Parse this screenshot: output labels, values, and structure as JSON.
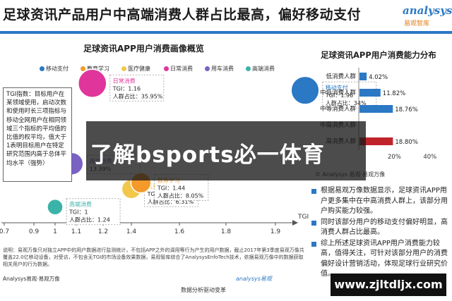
{
  "header": {
    "title": "足球资讯产品用户中高端消费人群占比最高，偏好移动支付",
    "logo_text": "analysys",
    "logo_sub": "易观智库"
  },
  "left_panel": {
    "title": "足球资讯APP用户消费画像概览",
    "tgi_box_text": "TGI指数：目标用户在某领域使用，启动次数和使用时长三项指标与移动全网用户在相同领域三个指标的平均值的比值的权平均，值大于1表明目标用户在特定研究范围内高于总体平均水平（强势）",
    "note": "说明：易观万像只对独立APP中的用户数据进行监测统计，不包括APP之外的调用等行为产生的用户数据，截止2017年第3季度易观万像共覆盖22.0亿移动设备，对受访，不包含无TGI的市场设备效果数据，易观智库综合了AnalysysEnfoTech技术，依据易观万像中的数据获取相关用户的行为数据。",
    "source": "Analysys易观·易观万像",
    "tag": "数据分析驱动变革",
    "logo_small": "analysys易观"
  },
  "right_panel": {
    "title": "足球资讯APP用户消费能力分布",
    "source": "© Analysys 易观·易观万像",
    "bullets": [
      "根据易观万像数据显示，足球资讯APP用户更多集中在中高消费人群上，该部分用户购买能力较强。",
      "同时该部分用户的移动支付偏好明显，高消费人群占比最高。",
      "综上所述足球资讯APP用户消费能力较高，值得关注，可针对该部分用户的消费偏好设计营销活动，体现足球行业研究价值。"
    ]
  },
  "overlay": {
    "text": "了解bsports必一体育",
    "bottom_watermark": "www.zjltdljx.com"
  },
  "chart_data": [
    {
      "type": "scatter",
      "title": "足球资讯APP用户消费画像概览",
      "xlabel": "TGI",
      "ylabel": "",
      "x_ticks": [
        "0.7",
        "0.9",
        "1",
        "1.1",
        "1.2",
        "1.4",
        "1.6",
        "1.8",
        "1.9"
      ],
      "legend": [
        "移动支付",
        "教育学习",
        "医疗健康",
        "日常消费",
        "用车消费",
        "高端消费"
      ],
      "legend_position": "top",
      "colors": {
        "移动支付": "#2b78c5",
        "教育学习": "#f39a2b",
        "医疗健康": "#f2c74a",
        "日常消费": "#e0369c",
        "用车消费": "#7a62c4",
        "高端消费": "#3cb3a8"
      },
      "points": [
        {
          "series": "日常消费",
          "label": "日常消费",
          "tgi": 1.16,
          "share": 35.95,
          "tgi_text": "TGI：1.16",
          "share_text": "人群占比：35.95%"
        },
        {
          "series": "移动支付",
          "label": "移动支付",
          "tgi": 1.96,
          "share": 34,
          "tgi_text": "TGI：1.96",
          "share_text": "人群占比：34%"
        },
        {
          "series": "用车消费",
          "label": "用车消费",
          "tgi": 1.08,
          "share": 13.39,
          "tgi_text": "",
          "share_text": "13.39%"
        },
        {
          "series": "高端消费",
          "label": "高端消费",
          "tgi": 1,
          "share": 1.24,
          "tgi_text": "TGI：1",
          "share_text": "人群占比：1.24"
        },
        {
          "series": "医疗健康",
          "label": "医疗健康",
          "tgi": 1.4,
          "share": 6.31,
          "tgi_text": "TGI：1.4",
          "share_text": "人群占比：6.31%"
        },
        {
          "series": "教育学习",
          "label": "教育学习",
          "tgi": 1.44,
          "share": 8.05,
          "tgi_text": "TGI：1.44",
          "share_text": "人群占比：8.05%"
        }
      ]
    },
    {
      "type": "bar",
      "orientation": "horizontal",
      "title": "足球资讯APP用户消费能力分布",
      "categories": [
        "低消费人群",
        "中低消费人群",
        "中等消费人群",
        "中高消费人群",
        "高消费人群"
      ],
      "values": [
        4.02,
        11.82,
        18.76,
        null,
        18.8
      ],
      "value_labels": [
        "4.02%",
        "11.82%",
        "18.76%",
        "",
        "18.80%"
      ],
      "x_ticks": [
        "20%",
        "40%"
      ],
      "xlim": [
        0,
        50
      ],
      "bar_color": "#2b78c5",
      "highlight_color": "#c0242b"
    }
  ]
}
